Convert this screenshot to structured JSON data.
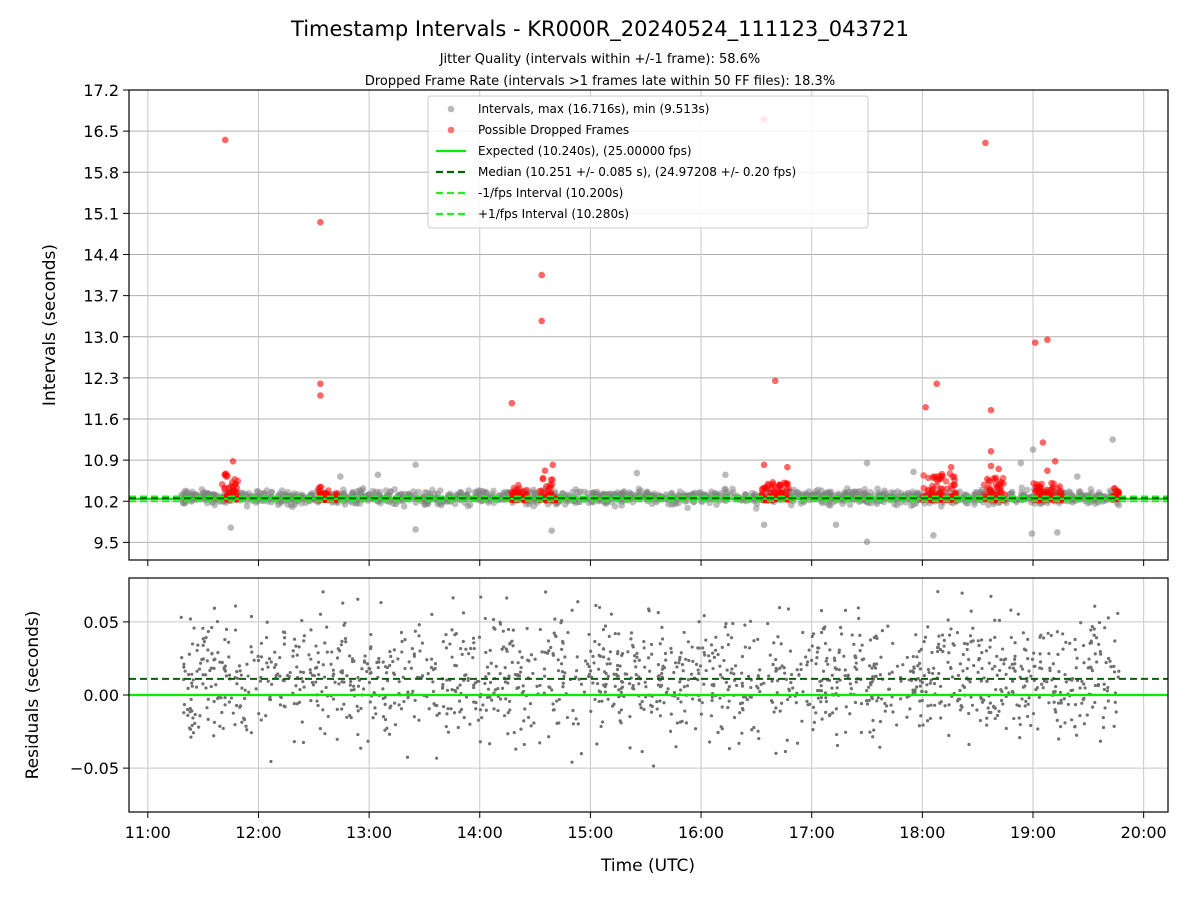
{
  "chart_data": [
    {
      "type": "scatter",
      "title": "Timestamp Intervals - KR000R_20240524_111123_043721",
      "subtitle_lines": [
        "Jitter Quality (intervals within +/-1 frame): 58.6%",
        "Dropped Frame Rate (intervals >1 frames late within 50 FF files): 18.3%"
      ],
      "xlabel": "",
      "ylabel": "Intervals (seconds)",
      "xlim": [
        10.83,
        20.22
      ],
      "ylim": [
        9.2,
        17.2
      ],
      "yticks": [
        9.5,
        10.2,
        10.9,
        11.6,
        12.3,
        13.0,
        13.7,
        14.4,
        15.1,
        15.8,
        16.5,
        17.2
      ],
      "ytick_labels": [
        "9.5",
        "10.2",
        "10.9",
        "11.6",
        "12.3",
        "13.0",
        "13.7",
        "14.4",
        "15.1",
        "15.8",
        "16.5",
        "17.2"
      ],
      "grid": true,
      "legend_position": "top-center",
      "legend": [
        "Intervals, max (16.716s), min (9.513s)",
        "Possible Dropped Frames",
        "Expected (10.240s), (25.00000 fps)",
        "Median (10.251 +/- 0.085 s), (24.97208 +/- 0.20 fps)",
        "-1/fps Interval (10.200s)",
        "+1/fps Interval (10.280s)"
      ],
      "lines": {
        "expected": 10.24,
        "median": 10.251,
        "minus_fps": 10.2,
        "plus_fps": 10.28
      },
      "colors": {
        "intervals": "#808080",
        "dropped": "#ff0000",
        "expected": "#00ee00",
        "median": "#006400",
        "fps_bounds": "#22ee22"
      },
      "intervals_summary": {
        "time_range": [
          11.3,
          19.78
        ],
        "typical_range": [
          9.95,
          10.55
        ],
        "max": 16.716,
        "min": 9.513
      },
      "intervals_outliers": [
        {
          "x": 11.75,
          "y": 9.75
        },
        {
          "x": 13.42,
          "y": 9.72
        },
        {
          "x": 14.65,
          "y": 9.7
        },
        {
          "x": 16.57,
          "y": 9.8
        },
        {
          "x": 17.22,
          "y": 9.8
        },
        {
          "x": 17.5,
          "y": 9.51
        },
        {
          "x": 18.1,
          "y": 9.62
        },
        {
          "x": 18.99,
          "y": 9.65
        },
        {
          "x": 19.22,
          "y": 9.67
        },
        {
          "x": 19.72,
          "y": 11.25
        },
        {
          "x": 19.0,
          "y": 11.08
        },
        {
          "x": 17.5,
          "y": 10.85
        },
        {
          "x": 13.42,
          "y": 10.82
        },
        {
          "x": 12.74,
          "y": 10.62
        },
        {
          "x": 13.08,
          "y": 10.65
        },
        {
          "x": 15.42,
          "y": 10.68
        },
        {
          "x": 16.22,
          "y": 10.65
        },
        {
          "x": 17.92,
          "y": 10.7
        },
        {
          "x": 18.89,
          "y": 10.85
        },
        {
          "x": 19.4,
          "y": 10.62
        }
      ],
      "dropped_frames": [
        {
          "x": 11.7,
          "y": 16.35
        },
        {
          "x": 12.56,
          "y": 14.95
        },
        {
          "x": 12.56,
          "y": 12.2
        },
        {
          "x": 12.56,
          "y": 12.0
        },
        {
          "x": 14.29,
          "y": 11.87
        },
        {
          "x": 14.56,
          "y": 14.05
        },
        {
          "x": 14.56,
          "y": 13.27
        },
        {
          "x": 16.57,
          "y": 16.7
        },
        {
          "x": 16.67,
          "y": 12.25
        },
        {
          "x": 18.03,
          "y": 11.8
        },
        {
          "x": 18.13,
          "y": 12.2
        },
        {
          "x": 18.57,
          "y": 16.3
        },
        {
          "x": 18.62,
          "y": 11.75
        },
        {
          "x": 19.02,
          "y": 12.9
        },
        {
          "x": 19.13,
          "y": 12.95
        },
        {
          "x": 18.62,
          "y": 11.05
        },
        {
          "x": 19.09,
          "y": 11.2
        },
        {
          "x": 11.77,
          "y": 10.88
        },
        {
          "x": 14.66,
          "y": 10.82
        },
        {
          "x": 14.59,
          "y": 10.72
        },
        {
          "x": 16.57,
          "y": 10.82
        },
        {
          "x": 16.78,
          "y": 10.78
        },
        {
          "x": 18.26,
          "y": 10.78
        },
        {
          "x": 18.62,
          "y": 10.8
        },
        {
          "x": 19.2,
          "y": 10.88
        },
        {
          "x": 19.13,
          "y": 10.72
        },
        {
          "x": 18.69,
          "y": 10.75
        }
      ],
      "dropped_clusters": [
        {
          "x_range": [
            11.67,
            11.82
          ],
          "y_range": [
            10.22,
            10.7
          ]
        },
        {
          "x_range": [
            12.54,
            12.72
          ],
          "y_range": [
            10.22,
            10.45
          ]
        },
        {
          "x_range": [
            14.27,
            14.44
          ],
          "y_range": [
            10.22,
            10.48
          ]
        },
        {
          "x_range": [
            14.53,
            14.7
          ],
          "y_range": [
            10.22,
            10.6
          ]
        },
        {
          "x_range": [
            16.55,
            16.82
          ],
          "y_range": [
            10.22,
            10.55
          ]
        },
        {
          "x_range": [
            18.0,
            18.3
          ],
          "y_range": [
            10.22,
            10.68
          ]
        },
        {
          "x_range": [
            18.55,
            18.75
          ],
          "y_range": [
            10.22,
            10.62
          ]
        },
        {
          "x_range": [
            19.0,
            19.27
          ],
          "y_range": [
            10.22,
            10.55
          ]
        },
        {
          "x_range": [
            19.72,
            19.78
          ],
          "y_range": [
            10.22,
            10.45
          ]
        }
      ]
    },
    {
      "type": "scatter",
      "title": "",
      "xlabel": "Time (UTC)",
      "ylabel": "Residuals (seconds)",
      "xlim": [
        10.83,
        20.22
      ],
      "ylim": [
        -0.08,
        0.08
      ],
      "xticks": [
        11,
        12,
        13,
        14,
        15,
        16,
        17,
        18,
        19,
        20
      ],
      "xtick_labels": [
        "11:00",
        "12:00",
        "13:00",
        "14:00",
        "15:00",
        "16:00",
        "17:00",
        "18:00",
        "19:00",
        "20:00"
      ],
      "yticks": [
        -0.05,
        0.0,
        0.05
      ],
      "ytick_labels": [
        "−0.05",
        "0.00",
        "0.05"
      ],
      "grid": true,
      "lines": {
        "zero": 0.0,
        "median_offset": 0.011
      },
      "residuals_summary": {
        "time_range": [
          11.3,
          19.78
        ],
        "typical_range": [
          -0.04,
          0.07
        ],
        "clipped_range": [
          -0.08,
          0.08
        ]
      },
      "colors": {
        "residuals": "#707070",
        "zero": "#00ee00",
        "median": "#006400"
      }
    }
  ]
}
